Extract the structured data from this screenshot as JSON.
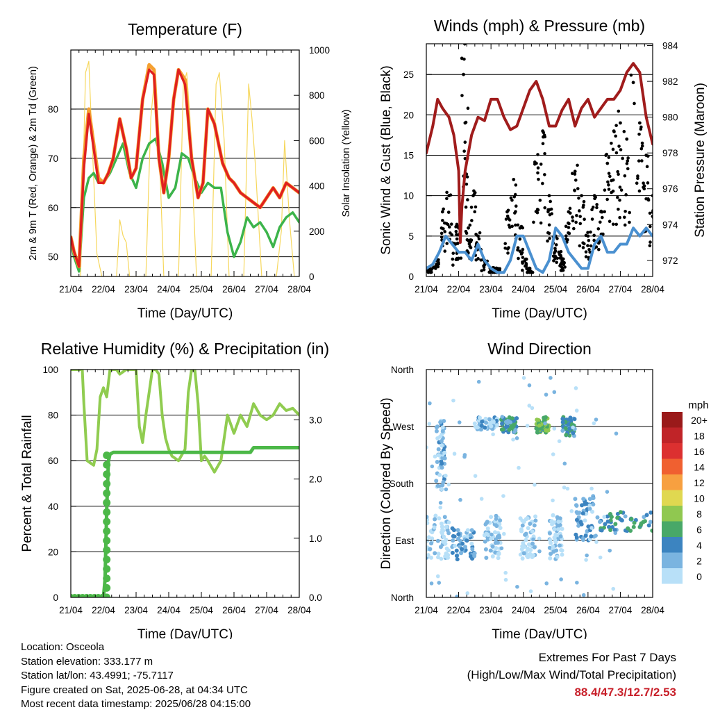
{
  "xticks": [
    "21/04",
    "22/04",
    "23/04",
    "24/04",
    "25/04",
    "26/04",
    "27/04",
    "28/04"
  ],
  "colors": {
    "t2m": "#e02020",
    "t9m": "#f5a030",
    "td": "#3cb44b",
    "solar": "#f5d040",
    "gust": "#000000",
    "wind": "#4a90d0",
    "pressure": "#a01c1c",
    "rh": "#90cc50",
    "precip": "#4cb848"
  },
  "chart_data": [
    {
      "id": "temperature",
      "type": "line",
      "title": "Temperature (F)",
      "xlabel": "Time (Day/UTC)",
      "ylabel": "2m & 9m T (Red, Orange) & 2m Td (Green)",
      "y2label": "Solar Insolation (Yellow)",
      "xlim": [
        0,
        7
      ],
      "ylim": [
        46,
        92
      ],
      "y2lim": [
        0,
        1000
      ],
      "yticks": [
        50,
        60,
        70,
        80
      ],
      "y2ticks": [
        0,
        200,
        400,
        600,
        800,
        1000
      ],
      "grid": true,
      "series": [
        {
          "name": "2m T",
          "axis": "left",
          "x": [
            0,
            0.1,
            0.25,
            0.4,
            0.55,
            0.7,
            0.85,
            1.0,
            1.15,
            1.3,
            1.5,
            1.7,
            1.85,
            2.0,
            2.2,
            2.4,
            2.55,
            2.7,
            2.85,
            3.0,
            3.15,
            3.3,
            3.5,
            3.7,
            3.9,
            4.05,
            4.2,
            4.4,
            4.65,
            4.85,
            5.0,
            5.2,
            5.4,
            5.6,
            5.8,
            6.0,
            6.2,
            6.4,
            6.6,
            6.8,
            7.0
          ],
          "y": [
            54,
            51,
            48,
            68,
            79,
            72,
            65,
            65,
            67,
            70,
            78,
            72,
            66,
            68,
            82,
            88,
            87,
            70,
            63,
            70,
            82,
            88,
            85,
            70,
            62,
            65,
            80,
            77,
            69,
            66,
            65,
            63,
            62,
            61,
            60,
            62,
            64,
            62,
            65,
            64,
            63
          ]
        },
        {
          "name": "9m T",
          "axis": "left",
          "x": [
            0,
            0.1,
            0.25,
            0.4,
            0.55,
            0.7,
            0.85,
            1.0,
            1.15,
            1.3,
            1.5,
            1.7,
            1.85,
            2.0,
            2.2,
            2.4,
            2.55,
            2.7,
            2.85,
            3.0,
            3.15,
            3.3,
            3.5,
            3.7,
            3.9,
            4.05,
            4.2,
            4.4,
            4.65,
            4.85,
            5.0,
            5.2,
            5.4,
            5.6,
            5.8,
            6.0,
            6.2,
            6.4,
            6.6,
            6.8,
            7.0
          ],
          "y": [
            54,
            51,
            48,
            70,
            80,
            73,
            66,
            65,
            67,
            70,
            78,
            72,
            66,
            68,
            82,
            89,
            88,
            70,
            63,
            70,
            82,
            88,
            86,
            70,
            62,
            65,
            80,
            77,
            69,
            66,
            65,
            63,
            62,
            61,
            60,
            62,
            64,
            62,
            65,
            64,
            63
          ]
        },
        {
          "name": "2m Td",
          "axis": "left",
          "x": [
            0,
            0.1,
            0.25,
            0.4,
            0.55,
            0.7,
            0.85,
            1.0,
            1.2,
            1.4,
            1.6,
            1.8,
            2.0,
            2.2,
            2.4,
            2.6,
            2.8,
            3.0,
            3.2,
            3.4,
            3.6,
            3.8,
            4.0,
            4.2,
            4.4,
            4.6,
            4.8,
            5.0,
            5.2,
            5.4,
            5.6,
            5.8,
            6.0,
            6.2,
            6.4,
            6.6,
            6.8,
            7.0
          ],
          "y": [
            53,
            50,
            47,
            62,
            66,
            67,
            65,
            65,
            67,
            70,
            73,
            67,
            64,
            70,
            73,
            74,
            69,
            62,
            64,
            71,
            70,
            66,
            63,
            65,
            64,
            64,
            55,
            50,
            53,
            58,
            56,
            57,
            55,
            52,
            56,
            58,
            59,
            57
          ]
        },
        {
          "name": "Solar",
          "axis": "right",
          "x": [
            0,
            0.3,
            0.45,
            0.55,
            0.65,
            0.8,
            0.95,
            1.4,
            1.5,
            1.6,
            1.7,
            1.8,
            2.3,
            2.45,
            2.55,
            2.7,
            2.85,
            3.3,
            3.45,
            3.55,
            3.65,
            3.85,
            4.3,
            4.45,
            4.55,
            4.7,
            4.85,
            5.3,
            5.45,
            5.55,
            5.65,
            5.85,
            6.3,
            6.45,
            6.55,
            6.7,
            6.85,
            7.0
          ],
          "y": [
            0,
            0,
            900,
            950,
            600,
            100,
            0,
            0,
            250,
            180,
            150,
            0,
            0,
            700,
            850,
            600,
            0,
            0,
            850,
            900,
            700,
            0,
            0,
            850,
            900,
            600,
            0,
            0,
            850,
            700,
            500,
            0,
            0,
            200,
            600,
            250,
            0,
            0
          ]
        }
      ]
    },
    {
      "id": "winds",
      "type": "line",
      "title": "Winds (mph) & Pressure (mb)",
      "xlabel": "Time (Day/UTC)",
      "ylabel": "Sonic Wind & Gust (Blue, Black)",
      "y2label": "Station Pressure (Maroon)",
      "xlim": [
        0,
        7
      ],
      "ylim": [
        0,
        28.8
      ],
      "y2lim": [
        971.1,
        984.1
      ],
      "yticks": [
        0,
        5,
        10,
        15,
        20,
        25
      ],
      "y2ticks": [
        972,
        974,
        976,
        978,
        980,
        982,
        984
      ],
      "grid": true,
      "series": [
        {
          "name": "Gust",
          "axis": "left",
          "type": "scatter",
          "x": [
            0.1,
            0.3,
            0.5,
            0.7,
            0.9,
            1.0,
            1.1,
            1.15,
            1.2,
            1.3,
            1.45,
            1.6,
            1.8,
            2.0,
            2.2,
            2.5,
            2.7,
            2.9,
            3.05,
            3.2,
            3.4,
            3.6,
            3.8,
            4.0,
            4.1,
            4.2,
            4.4,
            4.6,
            4.8,
            5.0,
            5.2,
            5.4,
            5.6,
            5.8,
            6.0,
            6.2,
            6.4,
            6.6,
            6.8,
            7.0
          ],
          "y": [
            1,
            2,
            8,
            10,
            4,
            6,
            27,
            25,
            19,
            6,
            10,
            5,
            2,
            1,
            1,
            8,
            12,
            6,
            2,
            1,
            14,
            18,
            10,
            5,
            3,
            2,
            8,
            13,
            10,
            5,
            10,
            8,
            14,
            18,
            19,
            17,
            24,
            19,
            15,
            10
          ]
        },
        {
          "name": "Wind",
          "axis": "left",
          "x": [
            0,
            0.2,
            0.4,
            0.6,
            0.8,
            1.0,
            1.2,
            1.4,
            1.6,
            1.8,
            2.0,
            2.2,
            2.4,
            2.6,
            2.8,
            3.0,
            3.2,
            3.4,
            3.6,
            3.8,
            4.0,
            4.2,
            4.4,
            4.6,
            4.8,
            5.0,
            5.2,
            5.4,
            5.6,
            5.8,
            6.0,
            6.2,
            6.4,
            6.6,
            6.8,
            7.0
          ],
          "y": [
            1,
            1.5,
            3,
            5,
            4,
            3,
            3,
            2,
            4,
            2,
            1,
            0.5,
            0.5,
            2,
            5,
            5,
            3,
            1,
            0.5,
            2,
            6,
            5,
            3,
            2,
            1,
            1,
            4,
            5,
            3,
            3,
            4,
            4,
            6,
            5,
            6,
            5
          ]
        },
        {
          "name": "Pressure",
          "axis": "right",
          "x": [
            0,
            0.2,
            0.35,
            0.5,
            0.7,
            0.85,
            1.0,
            1.05,
            1.1,
            1.2,
            1.4,
            1.6,
            1.8,
            2.0,
            2.2,
            2.4,
            2.6,
            2.8,
            3.0,
            3.2,
            3.4,
            3.6,
            3.8,
            4.0,
            4.2,
            4.4,
            4.6,
            4.8,
            5.0,
            5.2,
            5.4,
            5.6,
            5.8,
            6.0,
            6.2,
            6.4,
            6.6,
            6.8,
            7.0
          ],
          "y": [
            978,
            979.5,
            981,
            980.5,
            980,
            979,
            977,
            973,
            975,
            977,
            979,
            980,
            979.8,
            981,
            981,
            980,
            979.3,
            979.5,
            980.5,
            981.5,
            982,
            981,
            979.5,
            979.5,
            980.4,
            981,
            979.5,
            980.5,
            981,
            980,
            980.5,
            981,
            981,
            981.5,
            982.5,
            983,
            982.5,
            980,
            978.5
          ]
        }
      ]
    },
    {
      "id": "rh_precip",
      "type": "line",
      "title": "Relative Humidity (%) & Precipitation (in)",
      "xlabel": "Time (Day/UTC)",
      "ylabel": "Percent & Total Rainfall",
      "xlim": [
        0,
        7
      ],
      "ylim": [
        0,
        100
      ],
      "y2lim": [
        0,
        3.85
      ],
      "yticks": [
        0,
        20,
        40,
        60,
        80,
        100
      ],
      "y2ticks": [
        "0.0",
        "1.0",
        "2.0",
        "3.0"
      ],
      "grid": true,
      "series": [
        {
          "name": "RH",
          "axis": "left",
          "x": [
            0,
            0.2,
            0.35,
            0.4,
            0.5,
            0.7,
            0.8,
            0.9,
            1.0,
            1.1,
            1.2,
            1.4,
            1.5,
            1.7,
            1.9,
            2.0,
            2.1,
            2.2,
            2.3,
            2.5,
            2.6,
            2.7,
            2.8,
            2.9,
            3.0,
            3.1,
            3.3,
            3.5,
            3.6,
            3.7,
            3.8,
            3.9,
            4.0,
            4.1,
            4.2,
            4.4,
            4.6,
            4.8,
            5.0,
            5.2,
            5.4,
            5.6,
            5.8,
            6.0,
            6.2,
            6.4,
            6.6,
            6.8,
            7.0
          ],
          "y": [
            100,
            100,
            100,
            85,
            60,
            58,
            65,
            88,
            92,
            88,
            100,
            100,
            98,
            100,
            100,
            100,
            75,
            68,
            80,
            100,
            100,
            98,
            80,
            70,
            65,
            62,
            60,
            65,
            90,
            100,
            100,
            85,
            60,
            62,
            60,
            55,
            60,
            80,
            72,
            80,
            75,
            85,
            80,
            78,
            80,
            85,
            82,
            83,
            80
          ]
        },
        {
          "name": "Precip",
          "axis": "right",
          "x": [
            0,
            0.5,
            1.0,
            1.05,
            1.1,
            1.15,
            1.2,
            1.3,
            2.0,
            3.0,
            4.0,
            5.0,
            5.5,
            5.6,
            6.0,
            7.0
          ],
          "y": [
            0,
            0,
            0,
            0.3,
            1.5,
            2.3,
            2.42,
            2.45,
            2.45,
            2.45,
            2.45,
            2.45,
            2.45,
            2.53,
            2.53,
            2.53
          ]
        }
      ]
    },
    {
      "id": "wind_direction",
      "type": "scatter",
      "title": "Wind Direction",
      "xlabel": "Time (Day/UTC)",
      "ylabel": "Direction (Colored By Speed)",
      "xlim": [
        0,
        7
      ],
      "ylim": [
        0,
        360
      ],
      "ycategories": [
        "North",
        "East",
        "South",
        "West",
        "North"
      ],
      "grid": true,
      "legend": {
        "title": "mph",
        "position": "right",
        "labels": [
          "20+",
          "18",
          "16",
          "14",
          "12",
          "10",
          "8",
          "6",
          "4",
          "2",
          "0"
        ],
        "colors": [
          "#9a1a1a",
          "#c02428",
          "#dc3030",
          "#f06030",
          "#f7a040",
          "#e0d850",
          "#90c850",
          "#48a868",
          "#3c84c0",
          "#7ab4e0",
          "#b8e0f8"
        ]
      },
      "clusters": [
        {
          "x": [
            0.0,
            0.7
          ],
          "y": [
            60,
            130
          ],
          "speed": 1
        },
        {
          "x": [
            0.3,
            0.6
          ],
          "y": [
            170,
            280
          ],
          "speed": 2
        },
        {
          "x": [
            0.8,
            1.5
          ],
          "y": [
            60,
            110
          ],
          "speed": 3
        },
        {
          "x": [
            1.5,
            2.2
          ],
          "y": [
            265,
            285
          ],
          "speed": 2
        },
        {
          "x": [
            1.8,
            2.3
          ],
          "y": [
            60,
            130
          ],
          "speed": 1
        },
        {
          "x": [
            2.3,
            2.8
          ],
          "y": [
            260,
            285
          ],
          "speed": 5
        },
        {
          "x": [
            2.9,
            3.4
          ],
          "y": [
            60,
            130
          ],
          "speed": 1
        },
        {
          "x": [
            3.4,
            3.8
          ],
          "y": [
            260,
            285
          ],
          "speed": 7
        },
        {
          "x": [
            3.8,
            4.2
          ],
          "y": [
            60,
            130
          ],
          "speed": 1
        },
        {
          "x": [
            4.2,
            4.6
          ],
          "y": [
            255,
            285
          ],
          "speed": 5
        },
        {
          "x": [
            4.6,
            5.2
          ],
          "y": [
            90,
            160
          ],
          "speed": 3
        },
        {
          "x": [
            5.2,
            7.0
          ],
          "y": [
            105,
            135
          ],
          "speed": 5
        }
      ]
    }
  ],
  "info": {
    "location": "Location: Osceola",
    "elevation": "Station elevation: 333.177 m",
    "latlon": "Station lat/lon: 43.4991; -75.7117",
    "created": "Figure created on Sat, 2025-06-28, at 04:34 UTC",
    "recent": "Most recent data timestamp: 2025/06/28 04:15:00"
  },
  "extremes": {
    "title": "Extremes For Past 7 Days",
    "subtitle": "(High/Low/Max Wind/Total Precipitation)",
    "values": "88.4/47.3/12.7/2.53"
  }
}
